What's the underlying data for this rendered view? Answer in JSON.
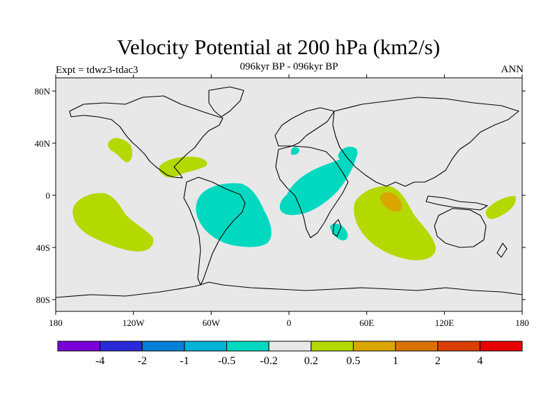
{
  "title": "Velocity Potential at 200 hPa (km2/s)",
  "subtitle": "096kyr BP - 096kyr BP",
  "left_label": "Expt = tdwz3-tdac3",
  "right_label": "ANN",
  "map": {
    "lat_ticks": [
      "80N",
      "40N",
      "0",
      "40S",
      "80S"
    ],
    "lon_ticks": [
      "180",
      "120W",
      "60W",
      "0",
      "60E",
      "120E",
      "180"
    ],
    "colors": {
      "background": "#e8e8e8",
      "neg_small": "#00d9c0",
      "pos_small": "#b3d900",
      "pos_mid": "#d9a600",
      "coast": "#000000"
    }
  },
  "colorbar": {
    "colors": [
      "#7a00d9",
      "#2a2ad9",
      "#0080d9",
      "#00b3d9",
      "#00d9c0",
      "#e8e8e8",
      "#b3d900",
      "#d9a600",
      "#d97300",
      "#d94000",
      "#e60000"
    ],
    "labels": [
      "-4",
      "-2",
      "-1",
      "-0.5",
      "-0.2",
      "0.2",
      "0.5",
      "1",
      "2",
      "4"
    ]
  }
}
